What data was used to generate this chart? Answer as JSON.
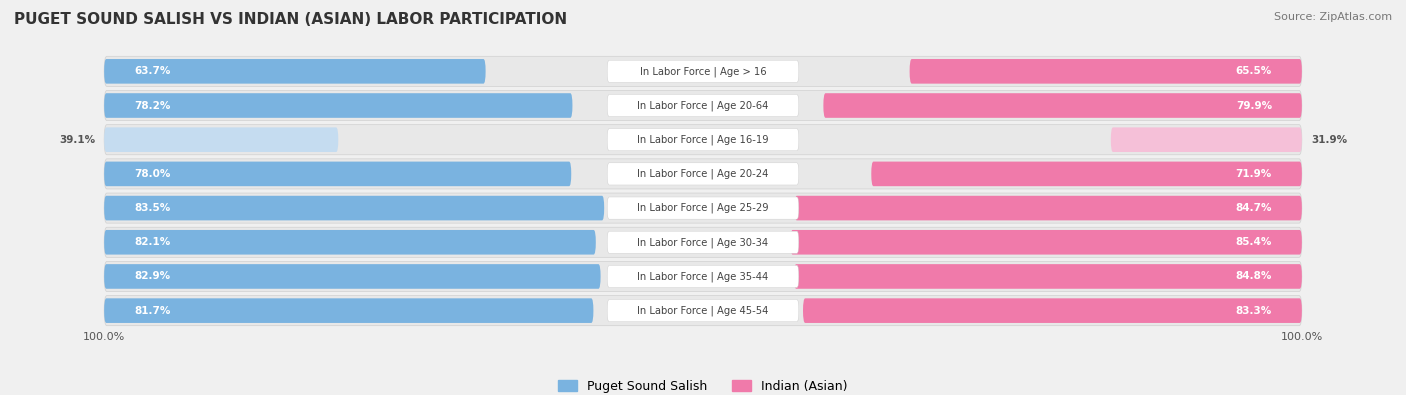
{
  "title": "PUGET SOUND SALISH VS INDIAN (ASIAN) LABOR PARTICIPATION",
  "source": "Source: ZipAtlas.com",
  "categories": [
    "In Labor Force | Age > 16",
    "In Labor Force | Age 20-64",
    "In Labor Force | Age 16-19",
    "In Labor Force | Age 20-24",
    "In Labor Force | Age 25-29",
    "In Labor Force | Age 30-34",
    "In Labor Force | Age 35-44",
    "In Labor Force | Age 45-54"
  ],
  "left_values": [
    63.7,
    78.2,
    39.1,
    78.0,
    83.5,
    82.1,
    82.9,
    81.7
  ],
  "right_values": [
    65.5,
    79.9,
    31.9,
    71.9,
    84.7,
    85.4,
    84.8,
    83.3
  ],
  "left_label": "Puget Sound Salish",
  "right_label": "Indian (Asian)",
  "left_color_strong": "#7ab3e0",
  "left_color_light": "#c5dcf0",
  "right_color_strong": "#f07aaa",
  "right_color_light": "#f5c0d8",
  "bg_color": "#f0f0f0",
  "row_bg_color": "#e8e8e8",
  "row_bg_border": "#d0d0d0",
  "label_bg": "#ffffff",
  "axis_label_left": "100.0%",
  "axis_label_right": "100.0%",
  "left_text_dark": "#555555",
  "right_text_dark": "#555555",
  "text_white": "#ffffff"
}
